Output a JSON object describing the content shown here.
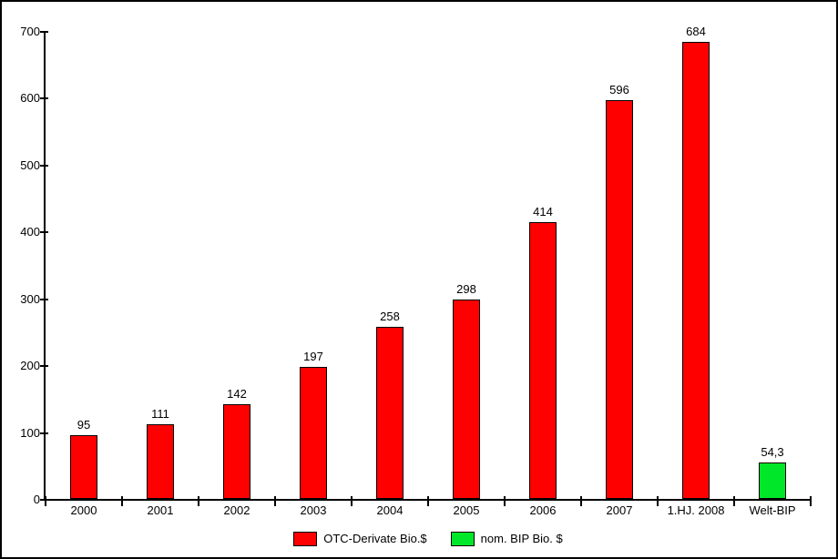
{
  "chart_data": {
    "type": "bar",
    "title": "",
    "xlabel": "",
    "ylabel": "",
    "grid": false,
    "legend_position": "bottom",
    "y_axis": {
      "min": 0,
      "max": 700,
      "tick_step": 100,
      "tick_labels": [
        "0",
        "100",
        "200",
        "300",
        "400",
        "500",
        "600",
        "700"
      ]
    },
    "categories": [
      "2000",
      "2001",
      "2002",
      "2003",
      "2004",
      "2005",
      "2006",
      "2007",
      "1.HJ. 2008",
      "Welt-BIP"
    ],
    "bars": [
      {
        "category": "2000",
        "value": 95,
        "value_label": "95",
        "series": 0
      },
      {
        "category": "2001",
        "value": 111,
        "value_label": "111",
        "series": 0
      },
      {
        "category": "2002",
        "value": 142,
        "value_label": "142",
        "series": 0
      },
      {
        "category": "2003",
        "value": 197,
        "value_label": "197",
        "series": 0
      },
      {
        "category": "2004",
        "value": 258,
        "value_label": "258",
        "series": 0
      },
      {
        "category": "2005",
        "value": 298,
        "value_label": "298",
        "series": 0
      },
      {
        "category": "2006",
        "value": 414,
        "value_label": "414",
        "series": 0
      },
      {
        "category": "2007",
        "value": 596,
        "value_label": "596",
        "series": 0
      },
      {
        "category": "1.HJ. 2008",
        "value": 684,
        "value_label": "684",
        "series": 0
      },
      {
        "category": "Welt-BIP",
        "value": 54.3,
        "value_label": "54,3",
        "series": 1
      }
    ],
    "legend": [
      {
        "label": "OTC-Derivate Bio.$",
        "color": "#ff0000"
      },
      {
        "label": "nom. BIP Bio. $",
        "color": "#00e628"
      }
    ],
    "colors": {
      "axis": "#000000",
      "bar_border": "#000000",
      "text": "#000000",
      "background": "#ffffff"
    }
  }
}
